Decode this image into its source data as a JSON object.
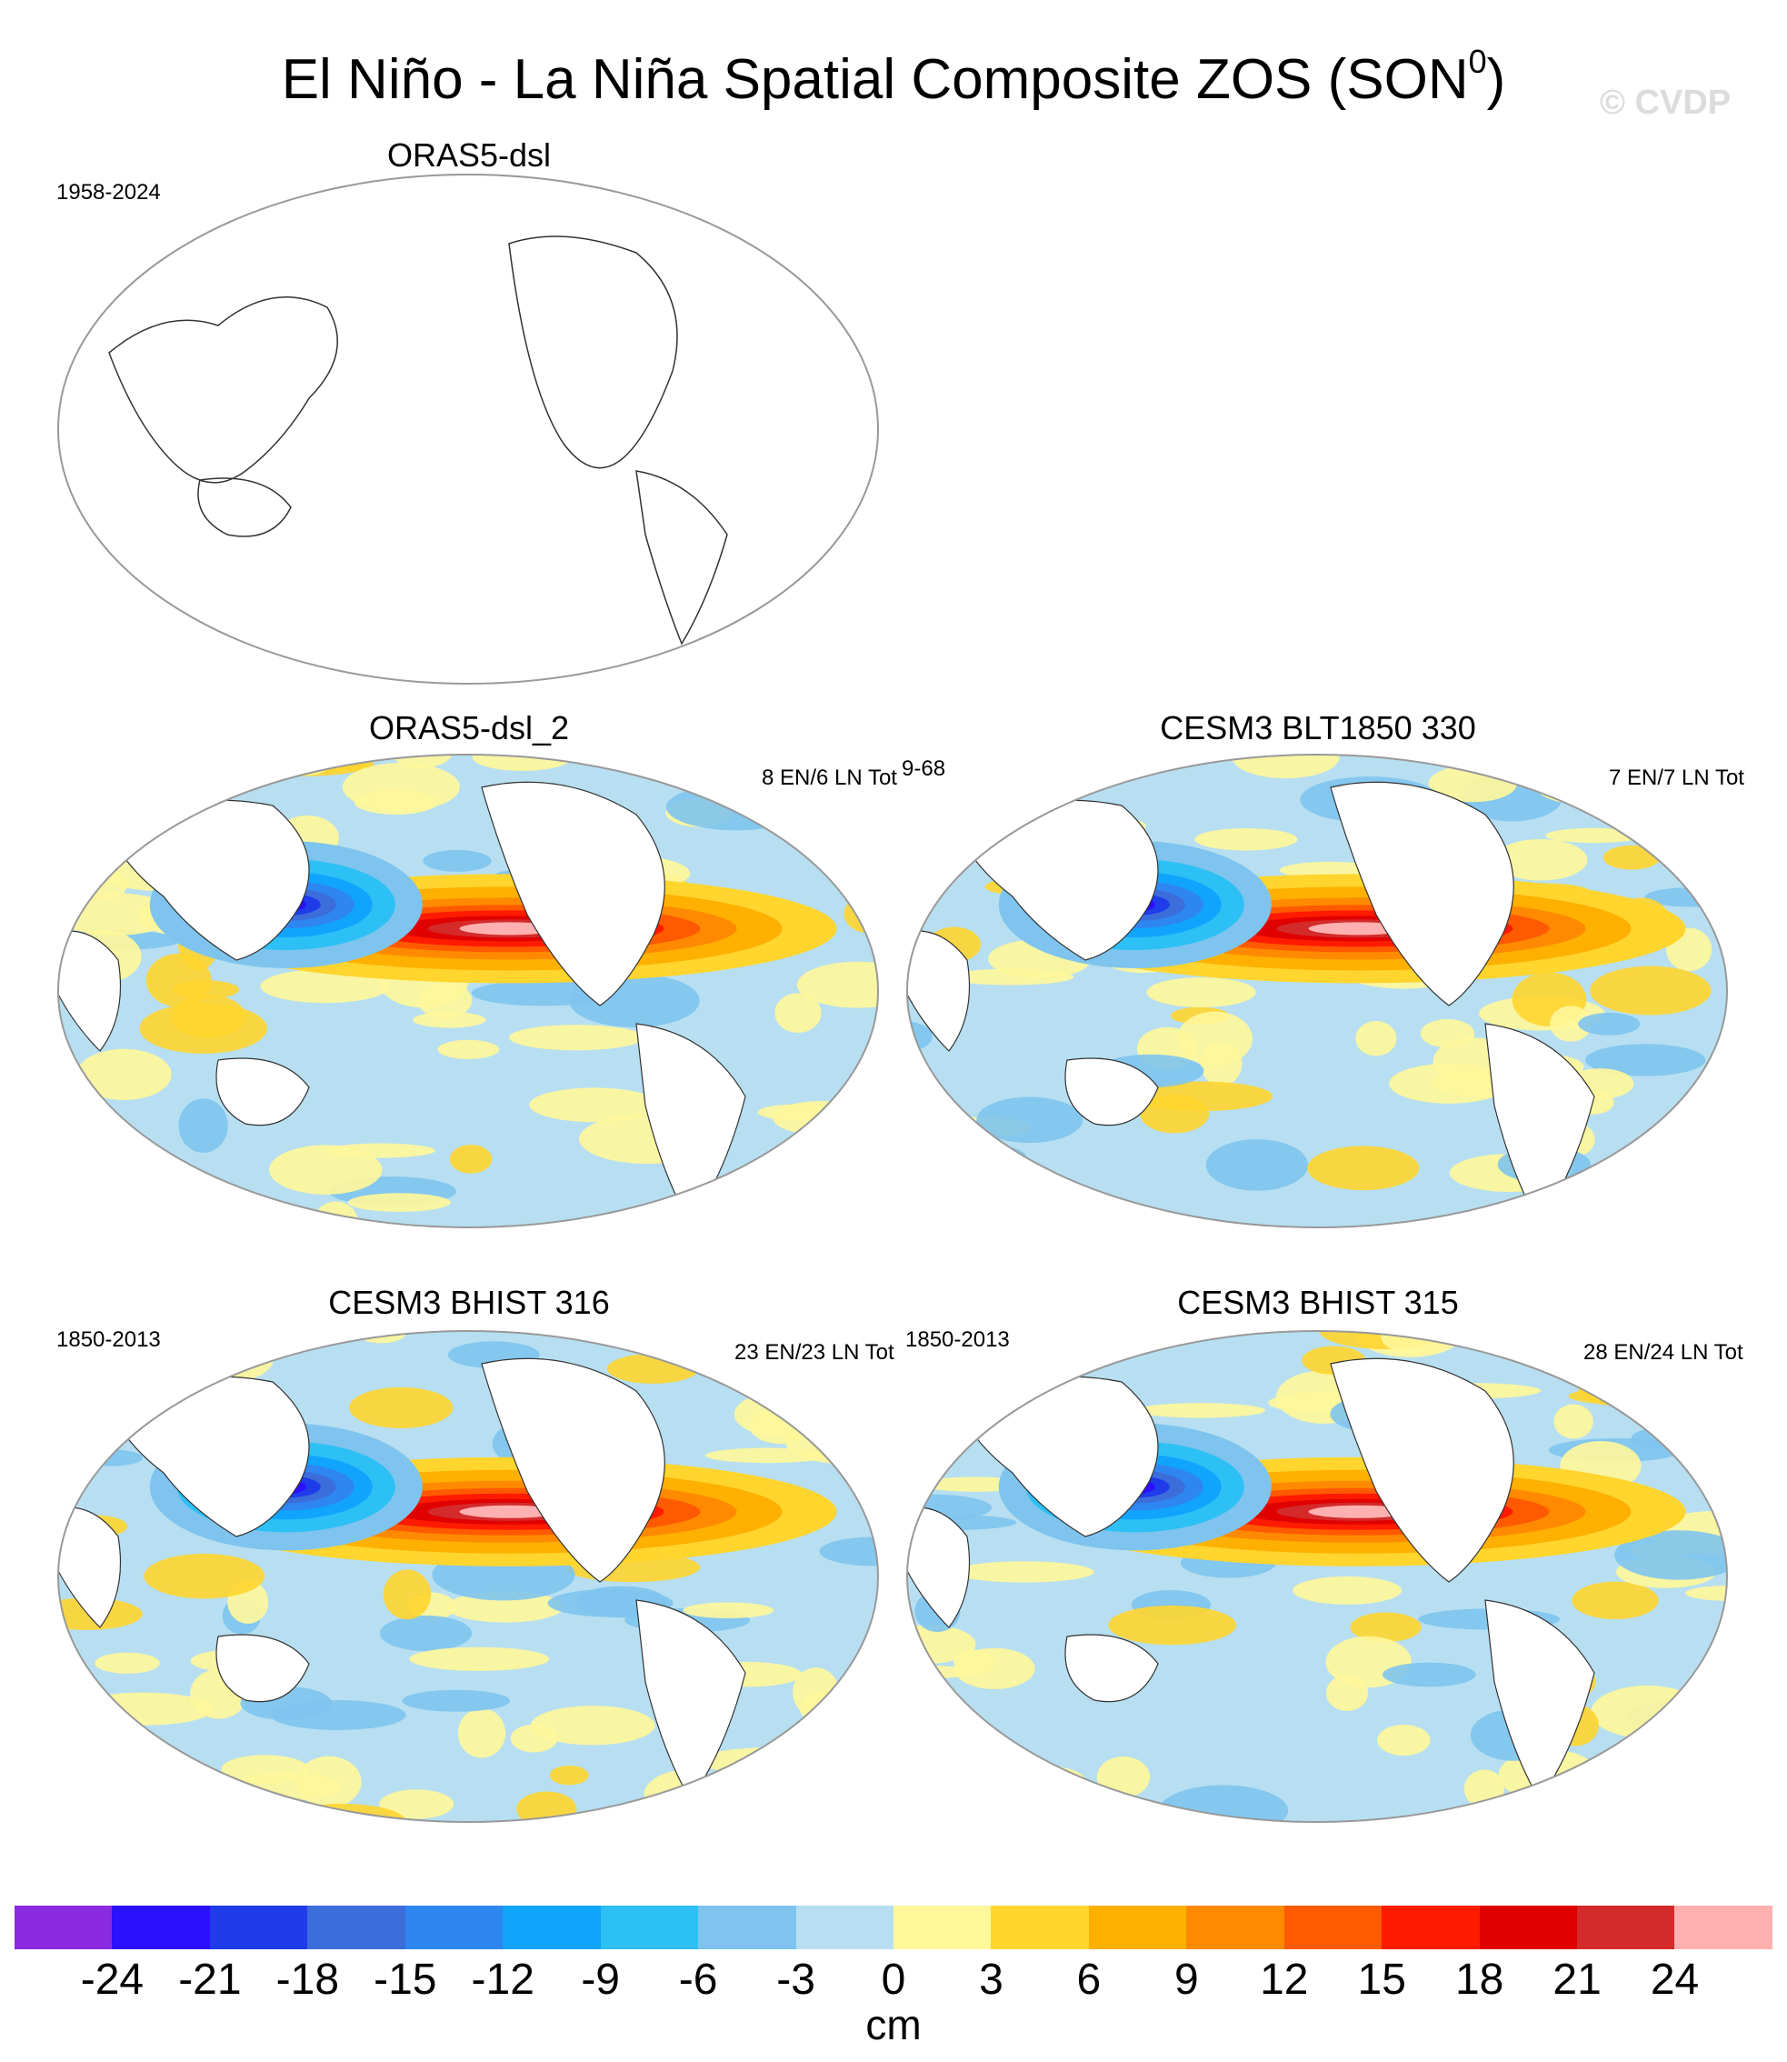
{
  "title": {
    "main": "El Niño - La Niña Spatial Composite ZOS (SON",
    "superscript": "0",
    "close": ")"
  },
  "watermark": "© CVDP",
  "panels": [
    {
      "name": "ORAS5-dsl",
      "left_label": "1958-2024",
      "right_label": "",
      "has_data": false
    },
    {
      "name": "ORAS5-dsl_2",
      "left_label": "",
      "right_label": "8 EN/6 LN Tot",
      "extra_label": "9-68",
      "has_data": true
    },
    {
      "name": "CESM3 BLT1850 330",
      "left_label": "",
      "right_label": "7 EN/7 LN Tot",
      "has_data": true
    },
    {
      "name": "CESM3 BHIST 316",
      "left_label": "1850-2013",
      "right_label": "23 EN/23 LN Tot",
      "has_data": true
    },
    {
      "name": "CESM3 BHIST 315",
      "left_label": "1850-2013",
      "right_label": "28 EN/24 LN Tot",
      "has_data": true
    }
  ],
  "chart_data": {
    "type": "heatmap",
    "title": "El Niño - La Niña Spatial Composite ZOS (SON0)",
    "units": "cm",
    "colorbar": {
      "ticks": [
        "-24",
        "-21",
        "-18",
        "-15",
        "-12",
        "-9",
        "-6",
        "-3",
        "0",
        "3",
        "6",
        "9",
        "12",
        "15",
        "18",
        "21",
        "24"
      ],
      "colors": [
        "#8a2be2",
        "#2b0fff",
        "#1f3bea",
        "#3b6ddb",
        "#2e86f0",
        "#11a4ff",
        "#2cc0f5",
        "#7ec4ee",
        "#b7dff1",
        "#fff79a",
        "#ffd52e",
        "#ffb000",
        "#ff8a00",
        "#ff5a00",
        "#ff1a00",
        "#e00000",
        "#d42a2a",
        "#ffb0b0"
      ]
    }
  }
}
